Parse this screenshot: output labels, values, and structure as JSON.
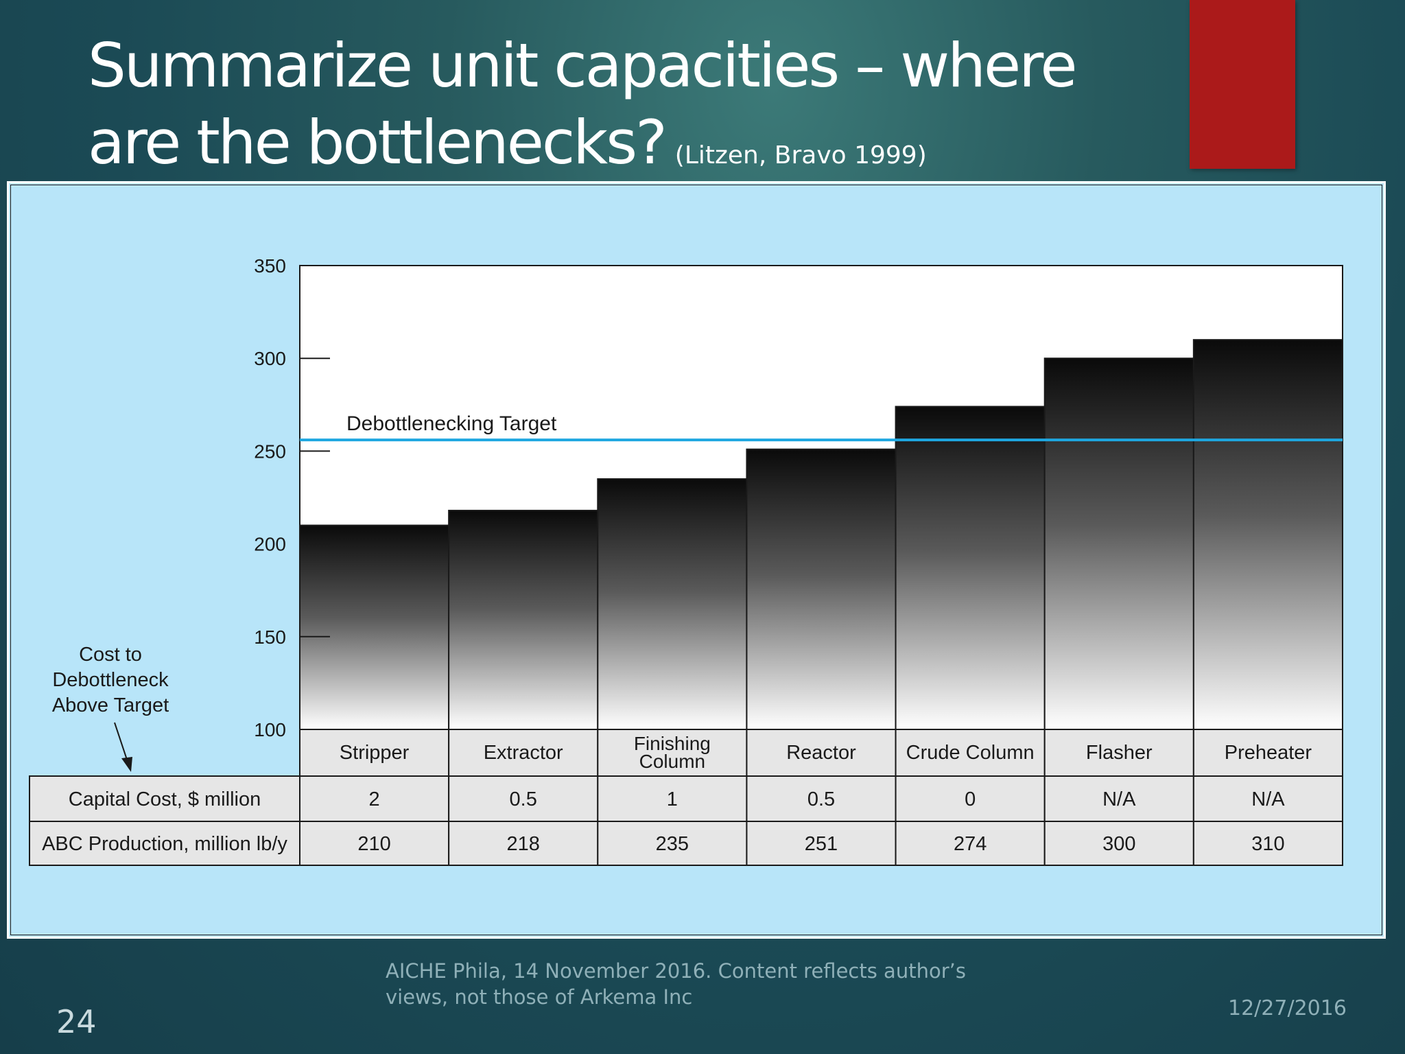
{
  "slide": {
    "title_main": "Summarize unit capacities – where are the bottlenecks?",
    "title_citation": "(Litzen, Bravo 1999)",
    "footer": "AICHE Phila, 14 November 2016. Content reflects author’s views, not those of Arkema Inc",
    "number": "24",
    "date": "12/27/2016",
    "accent_color": "#ab1a1a"
  },
  "chart_data": {
    "type": "bar",
    "categories": [
      "Stripper",
      "Extractor",
      "Finishing Column",
      "Reactor",
      "Crude Column",
      "Flasher",
      "Preheater"
    ],
    "values": [
      210,
      218,
      235,
      251,
      274,
      300,
      310
    ],
    "ylim": [
      100,
      350
    ],
    "yticks": [
      "100",
      "150",
      "200",
      "250",
      "300",
      "350"
    ],
    "target": {
      "label": "Debottlenecking Target",
      "value": 256,
      "color": "#1ea7e0"
    },
    "annotation": "Cost to Debottleneck Above Target",
    "table": {
      "rows": [
        {
          "label": "Capital Cost, $ million",
          "values": [
            "2",
            "0.5",
            "1",
            "0.5",
            "0",
            "N/A",
            "N/A"
          ]
        },
        {
          "label": "ABC Production, million lb/y",
          "values": [
            "210",
            "218",
            "235",
            "251",
            "274",
            "300",
            "310"
          ]
        }
      ]
    },
    "background_color": "#b8e5f9"
  }
}
